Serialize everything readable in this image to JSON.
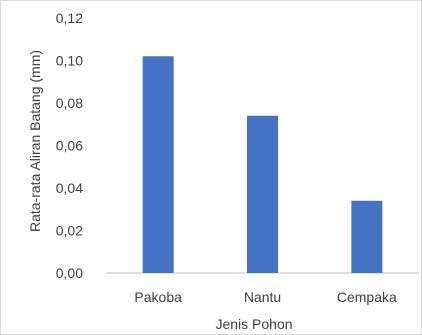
{
  "chart_data": {
    "type": "bar",
    "categories": [
      "Pakoba",
      "Nantu",
      "Cempaka"
    ],
    "values": [
      0.102,
      0.074,
      0.034
    ],
    "xlabel": "Jenis Pohon",
    "ylabel": "Rata-rata Aliran Batang (mm)",
    "ylim": [
      0,
      0.12
    ],
    "yticks": [
      "0,00",
      "0,02",
      "0,04",
      "0,06",
      "0,08",
      "0,10",
      "0,12"
    ],
    "bar_color": "#4472c4",
    "grid": false,
    "legend": "none"
  }
}
